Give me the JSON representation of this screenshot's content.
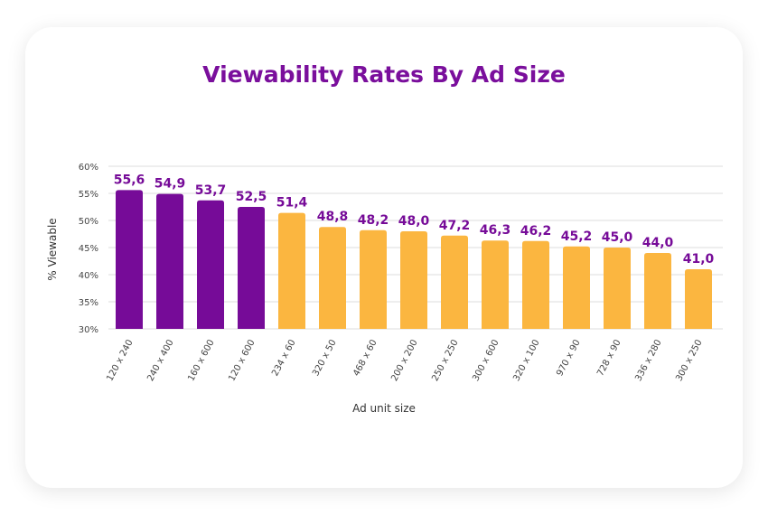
{
  "chart_data": {
    "type": "bar",
    "title": "Viewability Rates By Ad Size",
    "xlabel": "Ad unit size",
    "ylabel": "% Viewable",
    "ylim": [
      30,
      60
    ],
    "yticks": [
      "30%",
      "35%",
      "40%",
      "45%",
      "50%",
      "55%",
      "60%"
    ],
    "grid": true,
    "categories": [
      "120 x 240",
      "240 x 400",
      "160 x 600",
      "120 x 600",
      "234 x 60",
      "320 x 50",
      "468 x 60",
      "200 x 200",
      "250 x 250",
      "300 x 600",
      "320 x 100",
      "970 x 90",
      "728 x 90",
      "336 x 280",
      "300 x 250"
    ],
    "values": [
      55.6,
      54.9,
      53.7,
      52.5,
      51.4,
      48.8,
      48.2,
      48.0,
      47.2,
      46.3,
      46.2,
      45.2,
      45.0,
      44.0,
      41.0
    ],
    "data_labels": [
      "55,6",
      "54,9",
      "53,7",
      "52,5",
      "51,4",
      "48,8",
      "48,2",
      "48,0",
      "47,2",
      "46,3",
      "46,2",
      "45,2",
      "45,0",
      "44,0",
      "41,0"
    ],
    "bar_colors": [
      "#760b98",
      "#760b98",
      "#760b98",
      "#760b98",
      "#fbb640",
      "#fbb640",
      "#fbb640",
      "#fbb640",
      "#fbb640",
      "#fbb640",
      "#fbb640",
      "#fbb640",
      "#fbb640",
      "#fbb640",
      "#fbb640"
    ],
    "label_color": "#760b98"
  }
}
